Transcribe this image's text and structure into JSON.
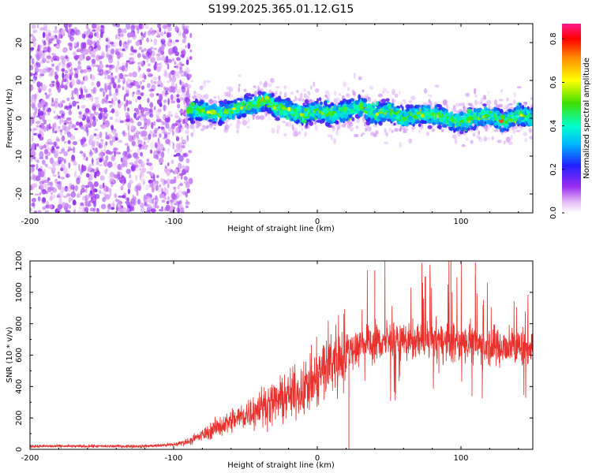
{
  "title": "S199.2025.365.01.12.G15",
  "chart_data": [
    {
      "type": "heatmap",
      "name": "spectrogram",
      "xlabel": "Height of straight line (km)",
      "ylabel": "Frequency (Hz)",
      "xlim": [
        -200,
        150
      ],
      "ylim": [
        -25,
        25
      ],
      "xticks": [
        -200,
        -100,
        0,
        100
      ],
      "yticks": [
        -20,
        -10,
        0,
        10,
        20
      ],
      "noise_region_end_km": -90,
      "ridge": {
        "x": [
          -90,
          -80,
          -70,
          -60,
          -50,
          -40,
          -35,
          -30,
          -20,
          -10,
          0,
          10,
          20,
          30,
          40,
          50,
          60,
          70,
          80,
          90,
          100,
          110,
          120,
          130,
          140,
          150
        ],
        "y": [
          2,
          2,
          1,
          2,
          3,
          4,
          5,
          3,
          2,
          1,
          2,
          1,
          2,
          3,
          1,
          2,
          0,
          1,
          1,
          0,
          -1,
          0,
          1,
          -1,
          1,
          0
        ]
      },
      "colorbar": {
        "label": "Normalized spectral amplitude",
        "ticks": [
          0.0,
          0.2,
          0.4,
          0.6,
          0.8
        ],
        "range": [
          0,
          0.87
        ]
      }
    },
    {
      "type": "line",
      "name": "snr",
      "xlabel": "Height of straight line (km)",
      "ylabel": "SNR (10 * v/v)",
      "xlim": [
        -200,
        150
      ],
      "ylim": [
        0,
        1200
      ],
      "xticks": [
        -200,
        -100,
        0,
        100
      ],
      "yticks": [
        0,
        200,
        400,
        600,
        800,
        1000,
        1200
      ],
      "color": "#e8302c",
      "envelope": {
        "x": [
          -200,
          -150,
          -120,
          -100,
          -90,
          -80,
          -70,
          -60,
          -50,
          -40,
          -30,
          -20,
          -10,
          0,
          5,
          10,
          15,
          20,
          30,
          40,
          60,
          80,
          100,
          120,
          150
        ],
        "y": [
          20,
          20,
          20,
          30,
          50,
          90,
          140,
          180,
          220,
          270,
          300,
          340,
          380,
          450,
          520,
          570,
          600,
          620,
          660,
          680,
          690,
          690,
          680,
          660,
          650
        ]
      },
      "peaks": [
        {
          "x": 40,
          "y": 1140
        },
        {
          "x": 75,
          "y": 1100
        },
        {
          "x": 93,
          "y": 1200
        },
        {
          "x": 110,
          "y": 1190
        },
        {
          "x": 22,
          "y": 0
        }
      ]
    }
  ]
}
